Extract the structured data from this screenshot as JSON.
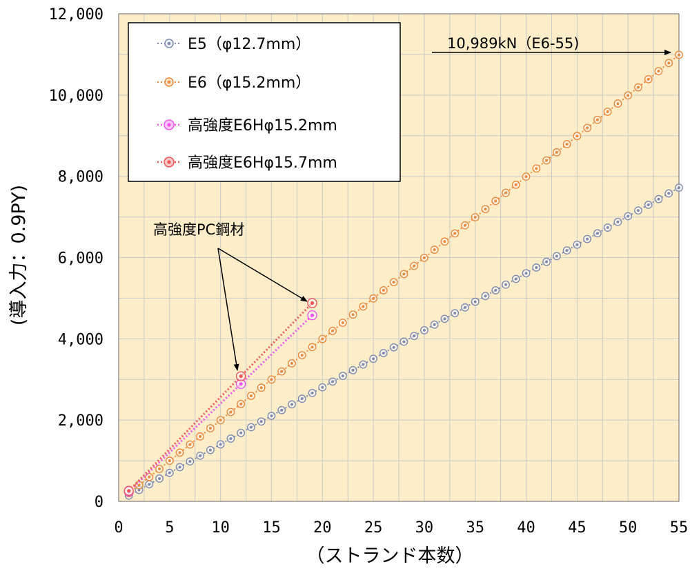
{
  "chart_data": {
    "type": "line",
    "xlabel": "（ストランド本数）",
    "ylabel": "(導入力：0.9PY)",
    "xlim": [
      0,
      55
    ],
    "ylim": [
      0,
      12000
    ],
    "x_ticks": [
      "0",
      "5",
      "10",
      "15",
      "20",
      "25",
      "30",
      "35",
      "40",
      "45",
      "50",
      "55"
    ],
    "y_ticks": [
      "0",
      "2,000",
      "4,000",
      "6,000",
      "8,000",
      "10,000",
      "12,000"
    ],
    "grid": true,
    "legend_position": "top-left",
    "colors": {
      "background": "#fdedc8",
      "grid": "#c9c9c9",
      "e5": "#7d8bb0",
      "e6": "#e8893c",
      "e6h152": "#ee55ee",
      "e6h157": "#ee5555"
    },
    "series": [
      {
        "key": "e5",
        "name": "E5（φ12.7mm）",
        "x_start": 1,
        "x_end": 55,
        "y_start": 140,
        "y_end": 7720
      },
      {
        "key": "e6",
        "name": "E6（φ15.2mm）",
        "x_start": 1,
        "x_end": 55,
        "y_start": 200,
        "y_end": 10989
      },
      {
        "key": "e6h152",
        "name": "高強度E6Hφ15.2mm",
        "points": [
          [
            1,
            240
          ],
          [
            12,
            2890
          ],
          [
            19,
            4580
          ]
        ]
      },
      {
        "key": "e6h157",
        "name": "高強度E6Hφ15.7mm",
        "points": [
          [
            1,
            260
          ],
          [
            12,
            3080
          ],
          [
            19,
            4880
          ]
        ]
      }
    ],
    "annotations": [
      {
        "text": "10,989kN（E6-55)"
      },
      {
        "text": "高強度PC鋼材"
      }
    ]
  }
}
